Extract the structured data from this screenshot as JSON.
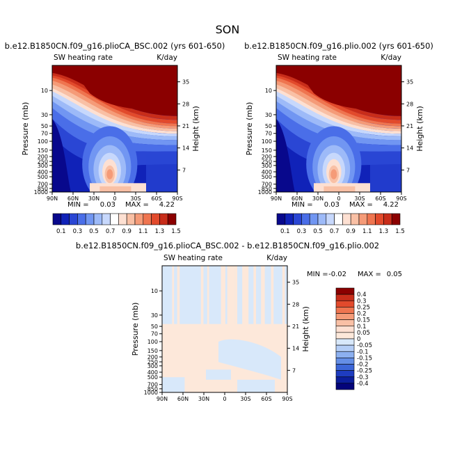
{
  "page_title": "SON",
  "colors": {
    "dark_red": "#8b0000",
    "ticks": "#000000",
    "pressure_grid_note": "none"
  },
  "chart_data": [
    {
      "type": "heatmap",
      "title": "b.e12.B1850CN.f09_g16.plioCA_BSC.002 (yrs 601-650)",
      "left_label": "SW heating rate",
      "right_label": "K/day",
      "xlabel": "",
      "ylabel": "Pressure (mb)",
      "ylabel_right": "Height (km)",
      "x_ticks": [
        "90N",
        "60N",
        "30N",
        "0",
        "30S",
        "60S",
        "90S"
      ],
      "y_ticks": [
        "10",
        "30",
        "50",
        "70",
        "100",
        "150",
        "200",
        "250",
        "300",
        "400",
        "500",
        "700",
        "850",
        "1000"
      ],
      "y_ticks_right": [
        "35",
        "28",
        "21",
        "14",
        "7"
      ],
      "min_label": "MIN =",
      "min_value": "0.03",
      "max_label": "MAX =",
      "max_value": "4.22",
      "colorbar_levels": [
        "0.1",
        "0.3",
        "0.5",
        "0.7",
        "0.9",
        "1.1",
        "1.3",
        "1.5"
      ],
      "colorbar_colors": [
        "#08088c",
        "#1022b8",
        "#2a46d4",
        "#4a6ee8",
        "#7196f2",
        "#9dbaf8",
        "#c7d8fc",
        "#ffffff",
        "#fde0d2",
        "#f9c0a5",
        "#f59b78",
        "#ef7550",
        "#e24a2c",
        "#c82d1a",
        "#8b0000"
      ]
    },
    {
      "type": "heatmap",
      "title": "b.e12.B1850CN.f09_g16.plio.002 (yrs 601-650)",
      "left_label": "SW heating rate",
      "right_label": "K/day",
      "xlabel": "",
      "ylabel": "Pressure (mb)",
      "ylabel_right": "Height (km)",
      "x_ticks": [
        "90N",
        "60N",
        "30N",
        "0",
        "30S",
        "60S",
        "90S"
      ],
      "y_ticks": [
        "10",
        "30",
        "50",
        "70",
        "100",
        "150",
        "200",
        "250",
        "300",
        "400",
        "500",
        "700",
        "850",
        "1000"
      ],
      "y_ticks_right": [
        "35",
        "28",
        "21",
        "14",
        "7"
      ],
      "min_label": "MIN =",
      "min_value": "0.03",
      "max_label": "MAX =",
      "max_value": "4.22",
      "colorbar_levels": [
        "0.1",
        "0.3",
        "0.5",
        "0.7",
        "0.9",
        "1.1",
        "1.3",
        "1.5"
      ],
      "colorbar_colors": [
        "#08088c",
        "#1022b8",
        "#2a46d4",
        "#4a6ee8",
        "#7196f2",
        "#9dbaf8",
        "#c7d8fc",
        "#ffffff",
        "#fde0d2",
        "#f9c0a5",
        "#f59b78",
        "#ef7550",
        "#e24a2c",
        "#c82d1a",
        "#8b0000"
      ]
    },
    {
      "type": "heatmap",
      "title": "b.e12.B1850CN.f09_g16.plioCA_BSC.002 - b.e12.B1850CN.f09_g16.plio.002",
      "left_label": "SW heating rate",
      "right_label": "K/day",
      "xlabel": "",
      "ylabel": "Pressure (mb)",
      "ylabel_right": "Height (km)",
      "x_ticks": [
        "90N",
        "60N",
        "30N",
        "0",
        "30S",
        "60S",
        "90S"
      ],
      "y_ticks": [
        "10",
        "30",
        "50",
        "70",
        "100",
        "150",
        "200",
        "250",
        "300",
        "400",
        "500",
        "700",
        "850",
        "1000"
      ],
      "y_ticks_right": [
        "35",
        "28",
        "21",
        "14",
        "7"
      ],
      "min_label": "MIN =",
      "min_value": "-0.02",
      "max_label": "MAX =",
      "max_value": "0.05",
      "colorbar_levels": [
        "0.4",
        "0.3",
        "0.25",
        "0.2",
        "0.15",
        "0.1",
        "0.05",
        "0",
        "-0.05",
        "-0.1",
        "-0.15",
        "-0.2",
        "-0.25",
        "-0.3",
        "-0.4"
      ],
      "colorbar_colors": [
        "#8b0000",
        "#c82d1a",
        "#e24a2c",
        "#ef7550",
        "#f59b78",
        "#f9c0a5",
        "#fde0d2",
        "#fde8da",
        "#d8e8fa",
        "#b4cdf6",
        "#8cb0f0",
        "#648ee6",
        "#3c66d8",
        "#1e3cc0",
        "#0c1e9c",
        "#04047a"
      ]
    }
  ]
}
